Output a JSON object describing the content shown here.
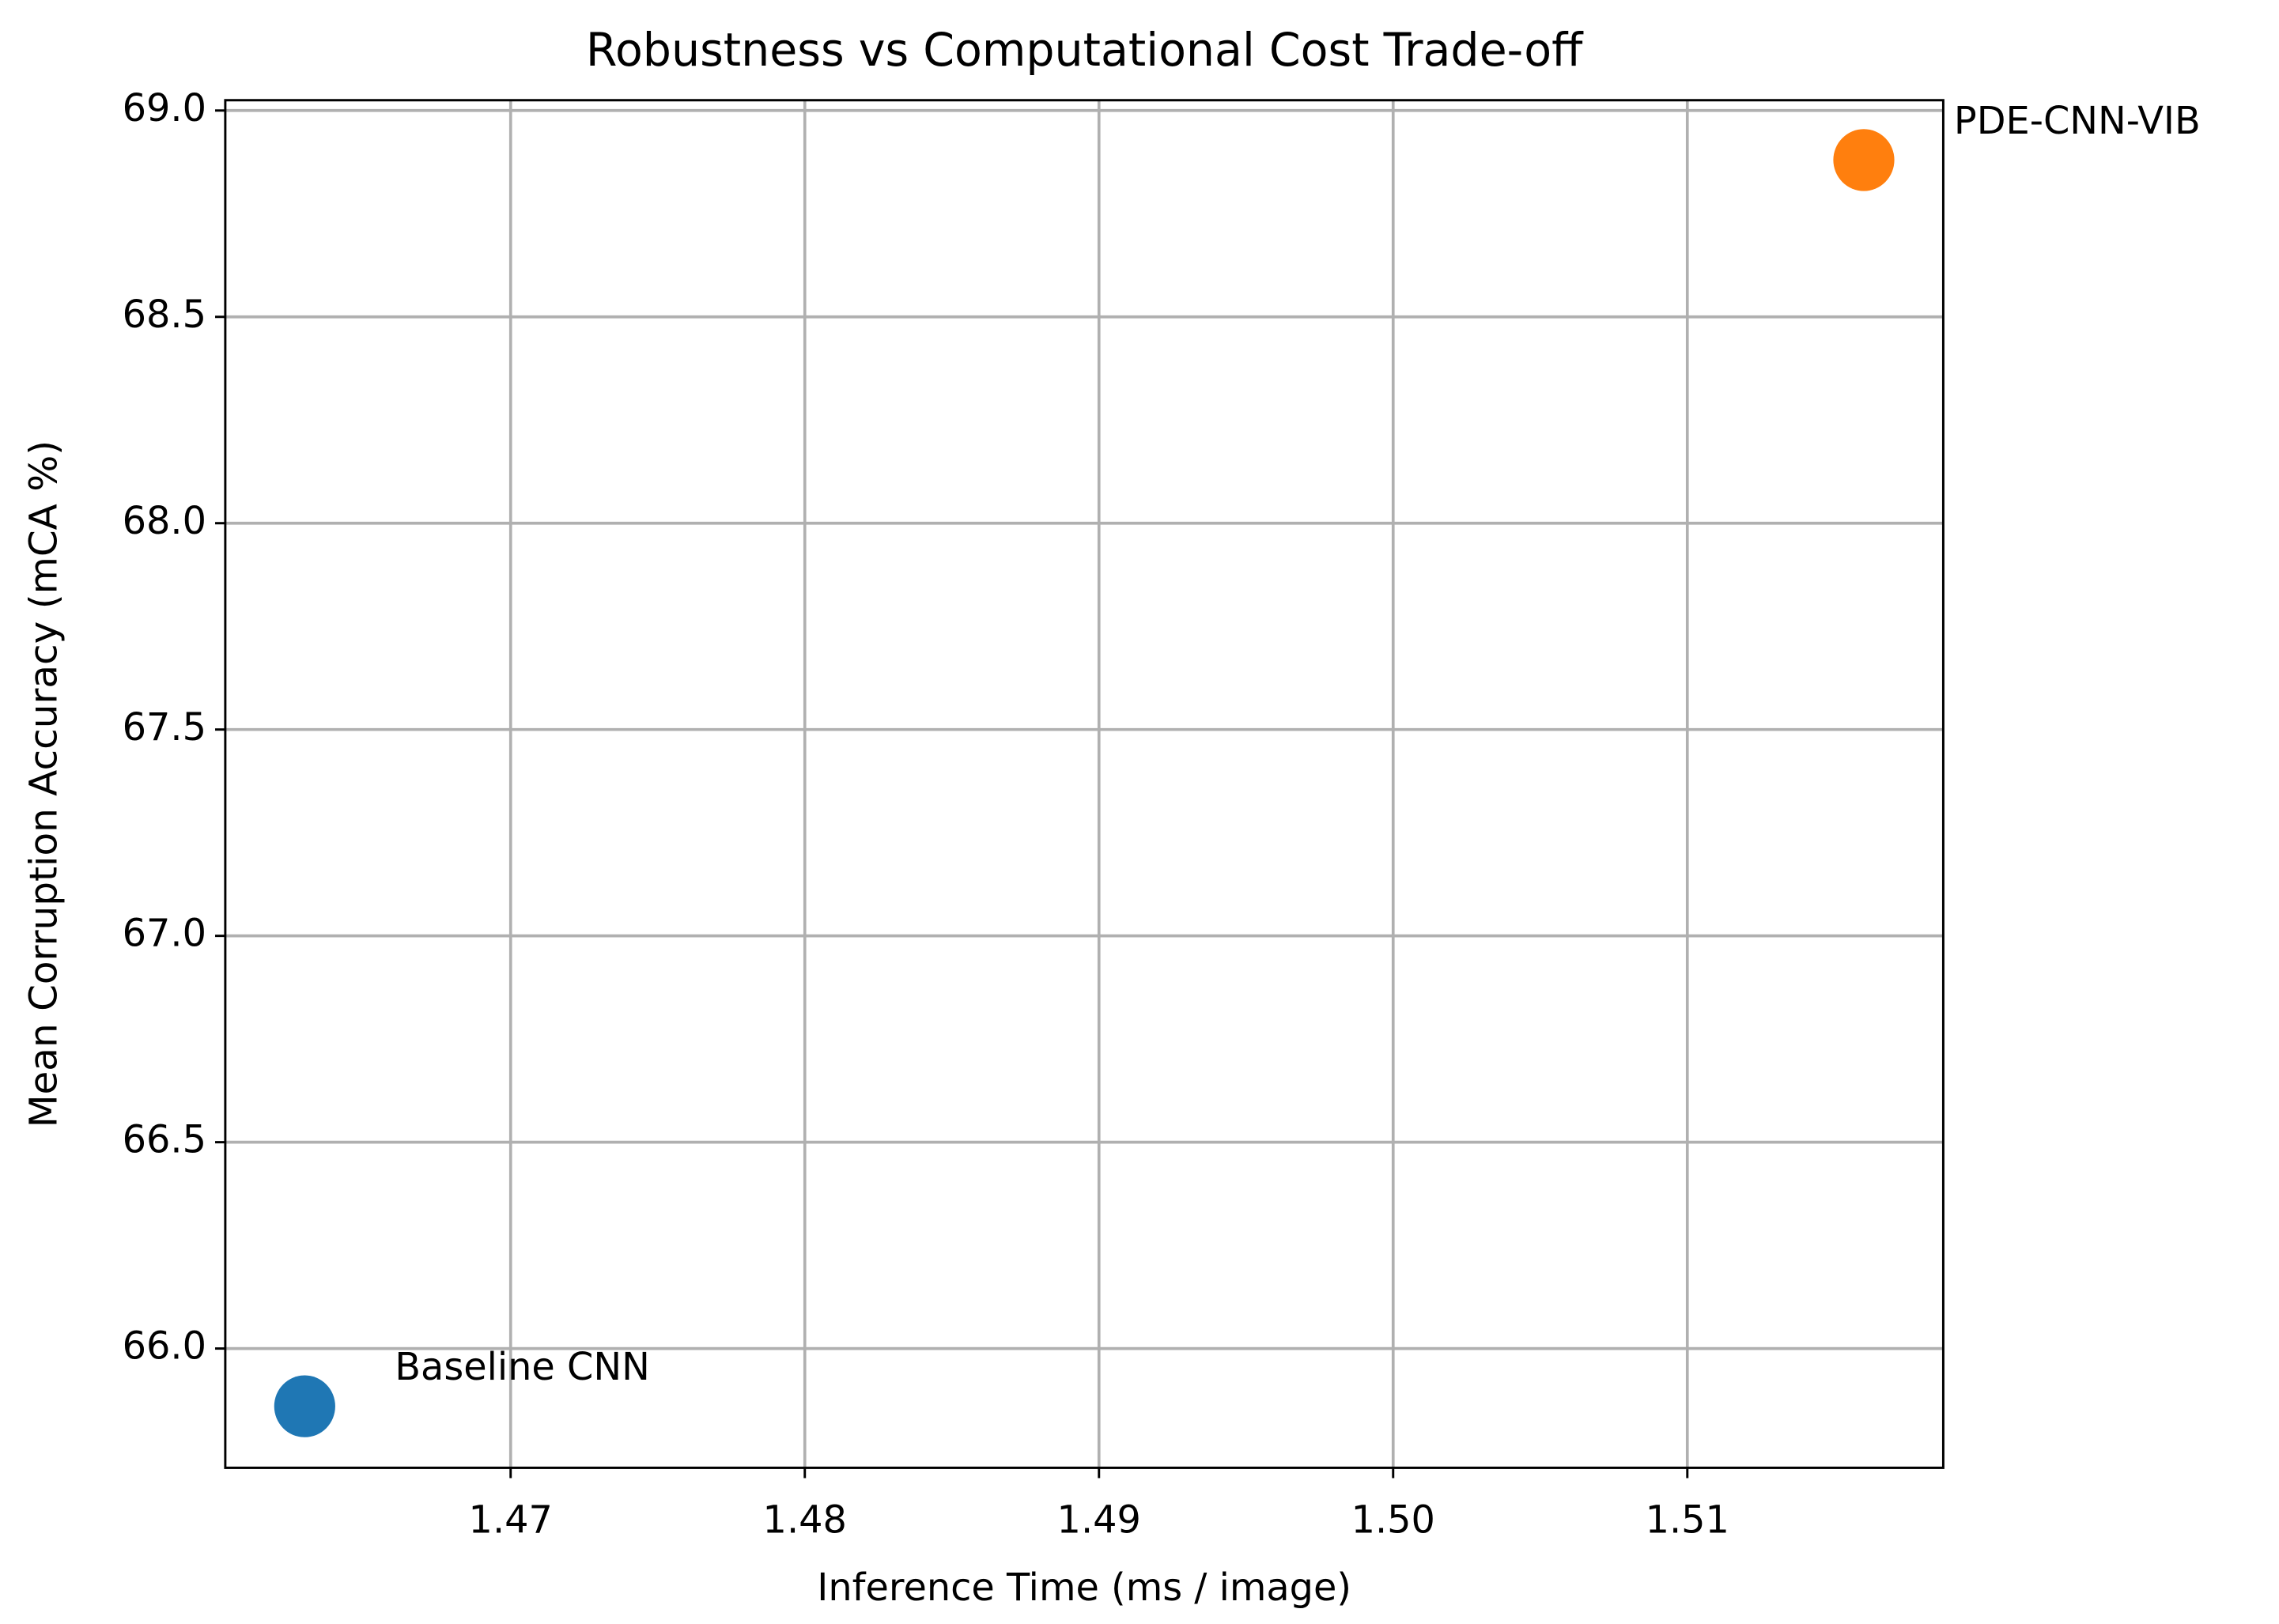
{
  "chart_data": {
    "type": "scatter",
    "title": "Robustness vs Computational Cost Trade-off",
    "x_label": "Inference Time (ms / image)",
    "y_label": "Mean Corruption Accuracy (mCA %)",
    "series": [
      {
        "name": "Baseline CNN",
        "color": "#1f77b4",
        "x": [
          1.463
        ],
        "values": [
          65.86
        ]
      },
      {
        "name": "PDE-CNN-VIB",
        "color": "#ff7f0e",
        "x": [
          1.516
        ],
        "values": [
          68.88
        ]
      }
    ],
    "xlim": [
      1.4603,
      1.5187
    ],
    "xticks": [
      1.47,
      1.48,
      1.49,
      {
        "value": 1.5,
        "label": "1.50"
      },
      1.51
    ],
    "ylim": [
      65.711,
      69.025
    ],
    "yticks": [
      {
        "value": 66,
        "label": "66.0"
      },
      66.5,
      {
        "value": 67,
        "label": "67.0"
      },
      67.5,
      {
        "value": 68,
        "label": "68.0"
      },
      68.5,
      {
        "value": 69,
        "label": "69.0"
      }
    ],
    "grid": true
  }
}
